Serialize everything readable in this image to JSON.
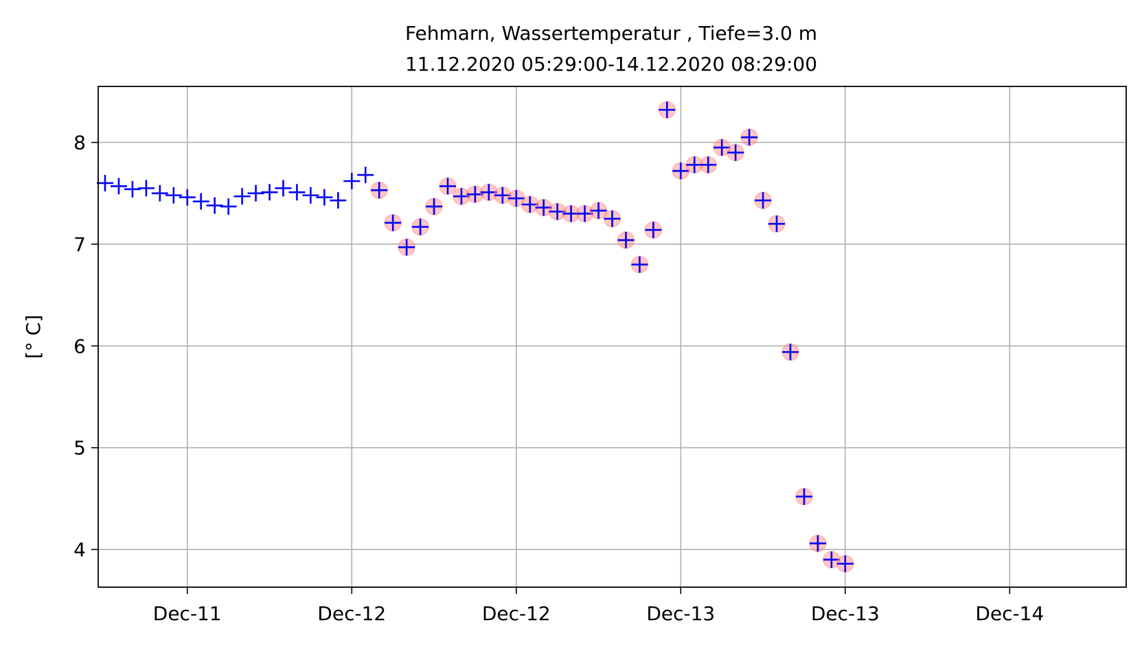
{
  "chart_data": {
    "type": "scatter",
    "title_line1": "Fehmarn, Wassertemperatur , Tiefe=3.0 m",
    "title_line2": "11.12.2020 05:29:00-14.12.2020 08:29:00",
    "xlabel": "",
    "ylabel": "[° C]",
    "x_unit": "hours since 11.12.2020 05:29:00",
    "xlim": [
      -5.5,
      69.5
    ],
    "ylim": [
      3.63,
      8.55
    ],
    "x_ticks": [
      {
        "x": 1.0,
        "label": "Dec-11"
      },
      {
        "x": 13.0,
        "label": "Dec-12"
      },
      {
        "x": 25.0,
        "label": "Dec-12"
      },
      {
        "x": 37.0,
        "label": "Dec-13"
      },
      {
        "x": 49.0,
        "label": "Dec-13"
      },
      {
        "x": 61.0,
        "label": "Dec-14"
      }
    ],
    "y_ticks": [
      4,
      5,
      6,
      7,
      8
    ],
    "grid": true,
    "colors": {
      "marker": "#0000ff",
      "flag": "#ff8080"
    },
    "series": [
      {
        "marker": "plus",
        "points": [
          {
            "x": -5.0,
            "y": 7.6
          },
          {
            "x": -4.0,
            "y": 7.57
          },
          {
            "x": -3.0,
            "y": 7.54
          },
          {
            "x": -2.0,
            "y": 7.55
          },
          {
            "x": -1.0,
            "y": 7.5
          },
          {
            "x": 0.0,
            "y": 7.48
          },
          {
            "x": 1.0,
            "y": 7.46
          },
          {
            "x": 2.0,
            "y": 7.42
          },
          {
            "x": 3.0,
            "y": 7.38
          },
          {
            "x": 4.0,
            "y": 7.37
          },
          {
            "x": 5.0,
            "y": 7.47
          },
          {
            "x": 6.0,
            "y": 7.5
          },
          {
            "x": 7.0,
            "y": 7.51
          },
          {
            "x": 8.0,
            "y": 7.55
          },
          {
            "x": 9.0,
            "y": 7.51
          },
          {
            "x": 10.0,
            "y": 7.48
          },
          {
            "x": 11.0,
            "y": 7.46
          },
          {
            "x": 12.0,
            "y": 7.43
          },
          {
            "x": 13.0,
            "y": 7.62
          },
          {
            "x": 14.0,
            "y": 7.68
          }
        ]
      },
      {
        "marker": "plus-with-halo",
        "points": [
          {
            "x": 15.0,
            "y": 7.53
          },
          {
            "x": 16.0,
            "y": 7.21
          },
          {
            "x": 17.0,
            "y": 6.97
          },
          {
            "x": 18.0,
            "y": 7.17
          },
          {
            "x": 19.0,
            "y": 7.37
          },
          {
            "x": 20.0,
            "y": 7.57
          },
          {
            "x": 21.0,
            "y": 7.47
          },
          {
            "x": 22.0,
            "y": 7.49
          },
          {
            "x": 23.0,
            "y": 7.51
          },
          {
            "x": 24.0,
            "y": 7.48
          },
          {
            "x": 25.0,
            "y": 7.45
          },
          {
            "x": 26.0,
            "y": 7.39
          },
          {
            "x": 27.0,
            "y": 7.36
          },
          {
            "x": 28.0,
            "y": 7.32
          },
          {
            "x": 29.0,
            "y": 7.3
          },
          {
            "x": 30.0,
            "y": 7.3
          },
          {
            "x": 31.0,
            "y": 7.33
          },
          {
            "x": 32.0,
            "y": 7.25
          },
          {
            "x": 33.0,
            "y": 7.04
          },
          {
            "x": 34.0,
            "y": 6.8
          },
          {
            "x": 35.0,
            "y": 7.14
          },
          {
            "x": 36.0,
            "y": 8.32
          },
          {
            "x": 37.0,
            "y": 7.72
          },
          {
            "x": 38.0,
            "y": 7.78
          },
          {
            "x": 39.0,
            "y": 7.78
          },
          {
            "x": 40.0,
            "y": 7.95
          },
          {
            "x": 41.0,
            "y": 7.9
          },
          {
            "x": 42.0,
            "y": 8.05
          },
          {
            "x": 43.0,
            "y": 7.43
          },
          {
            "x": 44.0,
            "y": 7.2
          },
          {
            "x": 45.0,
            "y": 5.94
          },
          {
            "x": 46.0,
            "y": 4.52
          },
          {
            "x": 47.0,
            "y": 4.06
          },
          {
            "x": 48.0,
            "y": 3.9
          },
          {
            "x": 49.0,
            "y": 3.86
          }
        ]
      }
    ]
  }
}
